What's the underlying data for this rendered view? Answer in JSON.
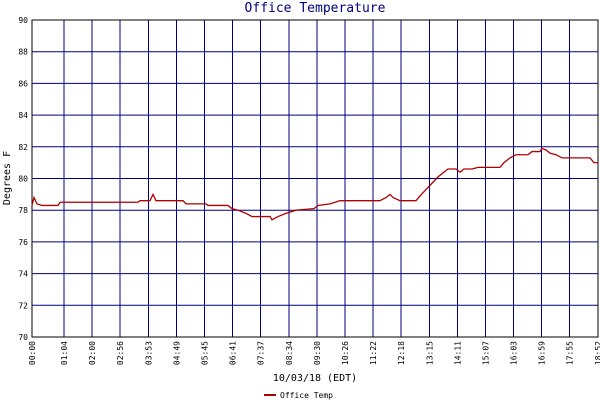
{
  "chart_data": {
    "type": "line",
    "title": "Office Temperature",
    "xlabel": "10/03/18 (EDT)",
    "ylabel": "Degrees F",
    "xlim": [
      0,
      1132
    ],
    "ylim": [
      70,
      90
    ],
    "yticks": [
      70,
      72,
      74,
      76,
      78,
      80,
      82,
      84,
      86,
      88,
      90
    ],
    "xticks": [
      {
        "value": 0,
        "label": "00:00"
      },
      {
        "value": 64,
        "label": "01:04"
      },
      {
        "value": 120,
        "label": "02:00"
      },
      {
        "value": 176,
        "label": "02:56"
      },
      {
        "value": 233,
        "label": "03:53"
      },
      {
        "value": 289,
        "label": "04:49"
      },
      {
        "value": 345,
        "label": "05:45"
      },
      {
        "value": 401,
        "label": "06:41"
      },
      {
        "value": 457,
        "label": "07:37"
      },
      {
        "value": 514,
        "label": "08:34"
      },
      {
        "value": 570,
        "label": "09:30"
      },
      {
        "value": 626,
        "label": "10:26"
      },
      {
        "value": 682,
        "label": "11:22"
      },
      {
        "value": 738,
        "label": "12:18"
      },
      {
        "value": 795,
        "label": "13:15"
      },
      {
        "value": 851,
        "label": "14:11"
      },
      {
        "value": 907,
        "label": "15:07"
      },
      {
        "value": 963,
        "label": "16:03"
      },
      {
        "value": 1019,
        "label": "16:59"
      },
      {
        "value": 1075,
        "label": "17:55"
      },
      {
        "value": 1132,
        "label": "18:52"
      }
    ],
    "grid": true,
    "x": [
      0,
      4,
      10,
      20,
      52,
      56,
      212,
      216,
      236,
      242,
      248,
      302,
      308,
      348,
      352,
      392,
      400,
      412,
      428,
      440,
      476,
      480,
      492,
      508,
      528,
      564,
      572,
      596,
      616,
      696,
      708,
      716,
      722,
      736,
      768,
      776,
      788,
      800,
      812,
      824,
      832,
      848,
      856,
      864,
      880,
      892,
      936,
      944,
      956,
      968,
      992,
      1000,
      1016,
      1020,
      1028,
      1036,
      1048,
      1060,
      1116,
      1124,
      1132
    ],
    "series": [
      {
        "name": "Office Temp",
        "color": "#b00000",
        "values": [
          78.3,
          78.8,
          78.4,
          78.3,
          78.3,
          78.5,
          78.5,
          78.6,
          78.6,
          79.0,
          78.6,
          78.6,
          78.4,
          78.4,
          78.3,
          78.3,
          78.1,
          78.0,
          77.8,
          77.6,
          77.6,
          77.4,
          77.6,
          77.8,
          78.0,
          78.1,
          78.3,
          78.4,
          78.6,
          78.6,
          78.8,
          79.0,
          78.8,
          78.6,
          78.6,
          78.9,
          79.3,
          79.7,
          80.1,
          80.4,
          80.6,
          80.6,
          80.4,
          80.6,
          80.6,
          80.7,
          80.7,
          81.0,
          81.3,
          81.5,
          81.5,
          81.7,
          81.7,
          81.9,
          81.8,
          81.6,
          81.5,
          81.3,
          81.3,
          81.0,
          81.0
        ]
      }
    ]
  }
}
